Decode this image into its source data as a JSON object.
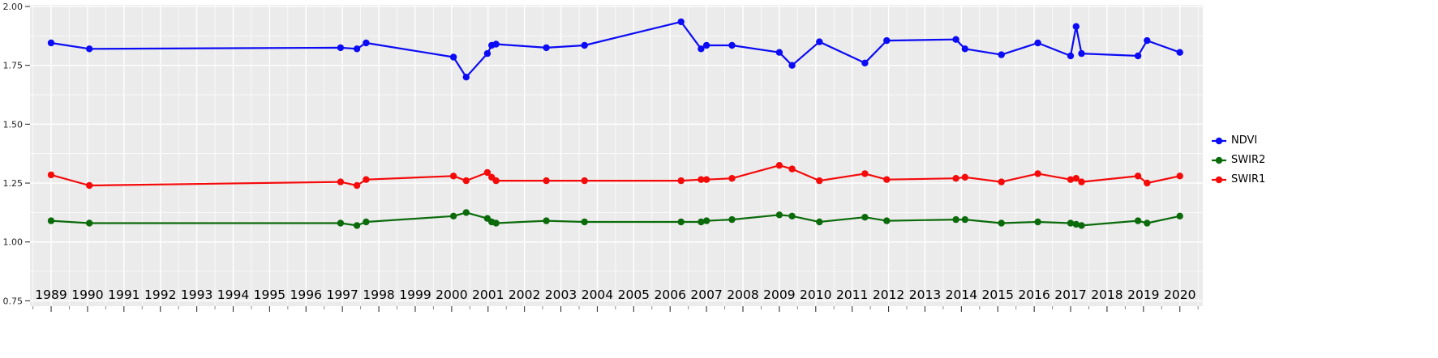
{
  "chart_data": {
    "type": "line",
    "title": "",
    "xlabel": "",
    "ylabel": "",
    "grid": true,
    "legend_position": "right",
    "panel_bg": "#EBEBEB",
    "grid_color": "#FFFFFF",
    "axis_text_color": "#262626",
    "xlim": [
      1988.42,
      2020.63
    ],
    "ylim": [
      0.7274,
      2.0068
    ],
    "yticks": [
      0.75,
      1.0,
      1.25,
      1.5,
      1.75,
      2.0
    ],
    "ytick_labels": [
      "0.75",
      "1.00",
      "1.25",
      "1.50",
      "1.75",
      "2.00"
    ],
    "xticks": [
      1989,
      1990,
      1991,
      1992,
      1993,
      1994,
      1995,
      1996,
      1997,
      1998,
      1999,
      2000,
      2001,
      2002,
      2003,
      2004,
      2005,
      2006,
      2007,
      2008,
      2009,
      2010,
      2011,
      2012,
      2013,
      2014,
      2015,
      2016,
      2017,
      2018,
      2019,
      2020
    ],
    "x": [
      1989.0,
      1990.05,
      1996.95,
      1997.4,
      1997.65,
      2000.05,
      2000.4,
      2000.98,
      2001.1,
      2001.22,
      2002.6,
      2003.65,
      2006.3,
      2006.85,
      2007.0,
      2007.7,
      2009.0,
      2009.35,
      2010.1,
      2011.35,
      2011.95,
      2013.85,
      2014.1,
      2015.1,
      2016.1,
      2017.0,
      2017.15,
      2017.3,
      2018.85,
      2019.1,
      2020.0
    ],
    "series": [
      {
        "name": "NDVI",
        "color": "#0B0BF5",
        "values": [
          1.845,
          1.82,
          1.825,
          1.82,
          1.845,
          1.785,
          1.7,
          1.8,
          1.835,
          1.84,
          1.825,
          1.835,
          1.935,
          1.82,
          1.835,
          1.835,
          1.805,
          1.75,
          1.85,
          1.76,
          1.855,
          1.86,
          1.82,
          1.795,
          1.845,
          1.79,
          1.915,
          1.8,
          1.79,
          1.855,
          1.805
        ]
      },
      {
        "name": "SWIR2",
        "color": "#0B6B0B",
        "values": [
          1.09,
          1.08,
          1.08,
          1.07,
          1.085,
          1.11,
          1.125,
          1.1,
          1.085,
          1.08,
          1.09,
          1.085,
          1.085,
          1.085,
          1.09,
          1.095,
          1.115,
          1.11,
          1.085,
          1.105,
          1.09,
          1.095,
          1.095,
          1.08,
          1.085,
          1.08,
          1.075,
          1.07,
          1.09,
          1.08,
          1.11
        ]
      },
      {
        "name": "SWIR1",
        "color": "#F50A0A",
        "values": [
          1.285,
          1.24,
          1.255,
          1.24,
          1.265,
          1.28,
          1.26,
          1.295,
          1.275,
          1.26,
          1.26,
          1.26,
          1.26,
          1.265,
          1.265,
          1.27,
          1.325,
          1.31,
          1.26,
          1.29,
          1.265,
          1.27,
          1.275,
          1.255,
          1.29,
          1.265,
          1.27,
          1.255,
          1.28,
          1.25,
          1.28
        ]
      }
    ]
  },
  "legend": {
    "items": [
      "NDVI",
      "SWIR2",
      "SWIR1"
    ]
  }
}
